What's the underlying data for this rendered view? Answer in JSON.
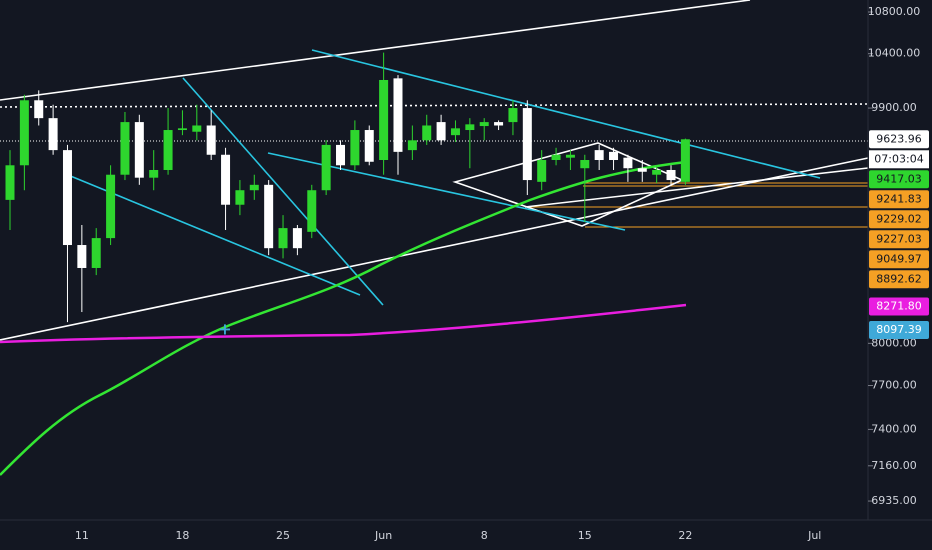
{
  "chart_data": {
    "type": "candlestick",
    "categories": [
      null,
      null,
      null,
      null,
      null,
      "11",
      null,
      null,
      null,
      null,
      null,
      null,
      "18",
      null,
      null,
      null,
      null,
      null,
      null,
      "25",
      null,
      null,
      null,
      null,
      null,
      null,
      "Jun",
      null,
      null,
      null,
      null,
      null,
      null,
      "8",
      null,
      null,
      null,
      null,
      null,
      null,
      "15",
      null,
      null,
      null,
      null,
      null,
      null,
      "22",
      null,
      null,
      null,
      null,
      null,
      null,
      null,
      null,
      "Jul",
      null,
      null,
      null
    ],
    "open": [
      9110,
      9400,
      9970,
      9810,
      9530,
      8745,
      8565,
      8800,
      9320,
      9775,
      9295,
      9360,
      9705,
      9690,
      9745,
      9490,
      9070,
      9190,
      9235,
      8720,
      8880,
      8850,
      9190,
      9575,
      9400,
      9705,
      9445,
      10170,
      9530,
      9615,
      9775,
      9660,
      9705,
      9740,
      9775,
      9775,
      9900,
      9260,
      9445,
      9465,
      9375,
      9530,
      9515,
      9465,
      9375,
      9320,
      9360,
      9260,
      null,
      null,
      null,
      null,
      null,
      null,
      null,
      null,
      null,
      null,
      null,
      null
    ],
    "high": [
      9530,
      10020,
      10060,
      9930,
      9575,
      8905,
      8880,
      9400,
      9865,
      9840,
      9530,
      9900,
      9880,
      9930,
      9880,
      9550,
      9275,
      9320,
      9275,
      8985,
      8905,
      9235,
      9615,
      9615,
      9790,
      9745,
      10410,
      10200,
      9745,
      9840,
      9840,
      9790,
      9810,
      9810,
      9790,
      9970,
      9970,
      9530,
      9550,
      9530,
      9490,
      9575,
      9550,
      9490,
      9445,
      9400,
      9400,
      9630,
      null,
      null,
      null,
      null,
      null,
      null,
      null,
      null,
      null,
      null,
      null,
      null
    ],
    "low": [
      8865,
      9190,
      9745,
      9490,
      8155,
      8230,
      8510,
      8745,
      9275,
      9235,
      9190,
      9320,
      9660,
      9615,
      9445,
      8865,
      8985,
      9110,
      8665,
      8640,
      8665,
      8800,
      9150,
      9360,
      9360,
      9400,
      9320,
      9320,
      9445,
      9575,
      9575,
      9600,
      9375,
      9615,
      9705,
      9660,
      9150,
      9190,
      9400,
      9360,
      8930,
      9360,
      9360,
      9260,
      9260,
      9250,
      9235,
      9235,
      null,
      null,
      null,
      null,
      null,
      null,
      null,
      null,
      null,
      null,
      null,
      null
    ],
    "close": [
      9400,
      9970,
      9810,
      9530,
      8745,
      8565,
      8800,
      9320,
      9775,
      9295,
      9360,
      9705,
      9720,
      9745,
      9490,
      9070,
      9190,
      9235,
      8720,
      8880,
      8720,
      9190,
      9575,
      9400,
      9705,
      9430,
      10155,
      9515,
      9615,
      9745,
      9615,
      9720,
      9755,
      9775,
      9745,
      9900,
      9275,
      9445,
      9490,
      9490,
      9445,
      9445,
      9445,
      9375,
      9345,
      9360,
      9275,
      9623.96,
      null,
      null,
      null,
      null,
      null,
      null,
      null,
      null,
      null,
      null,
      null,
      null
    ],
    "up_color": "#2ed62e",
    "down_color": "#ffffff",
    "log_scale": true,
    "ylim": [
      6817,
      10918
    ],
    "yticks": [
      {
        "value": 10800,
        "label": "10800.00"
      },
      {
        "value": 10400,
        "label": "10400.00"
      },
      {
        "value": 9900,
        "label": "9900.00"
      },
      {
        "value": 8000,
        "label": "8000.00"
      },
      {
        "value": 7700,
        "label": "7700.00"
      },
      {
        "value": 7400,
        "label": "7400.00"
      },
      {
        "value": 7160,
        "label": "7160.00"
      },
      {
        "value": 6935,
        "label": "6935.00"
      }
    ],
    "price_labels": [
      {
        "value": 9623.96,
        "label": "9623.96",
        "color": "#ffffff"
      },
      {
        "value": 9417.03,
        "label": "9417.03",
        "color": "#2ed62e"
      },
      {
        "value": 9241.83,
        "label": "9241.83",
        "color": "#f5a024"
      },
      {
        "value": 9229.02,
        "label": "9229.02",
        "color": "#f5a024"
      },
      {
        "value": 9227.03,
        "label": "9227.03",
        "color": "#f5a024"
      },
      {
        "value": 9049.97,
        "label": "9049.97",
        "color": "#f5a024"
      },
      {
        "value": 8892.62,
        "label": "8892.62",
        "color": "#f5a024"
      },
      {
        "value": 8271.8,
        "label": "8271.80",
        "color": "#e91ee0"
      },
      {
        "value": 8097.39,
        "label": "8097.39",
        "color": "#3fa9d8"
      }
    ],
    "countdown": "07:03:04"
  }
}
